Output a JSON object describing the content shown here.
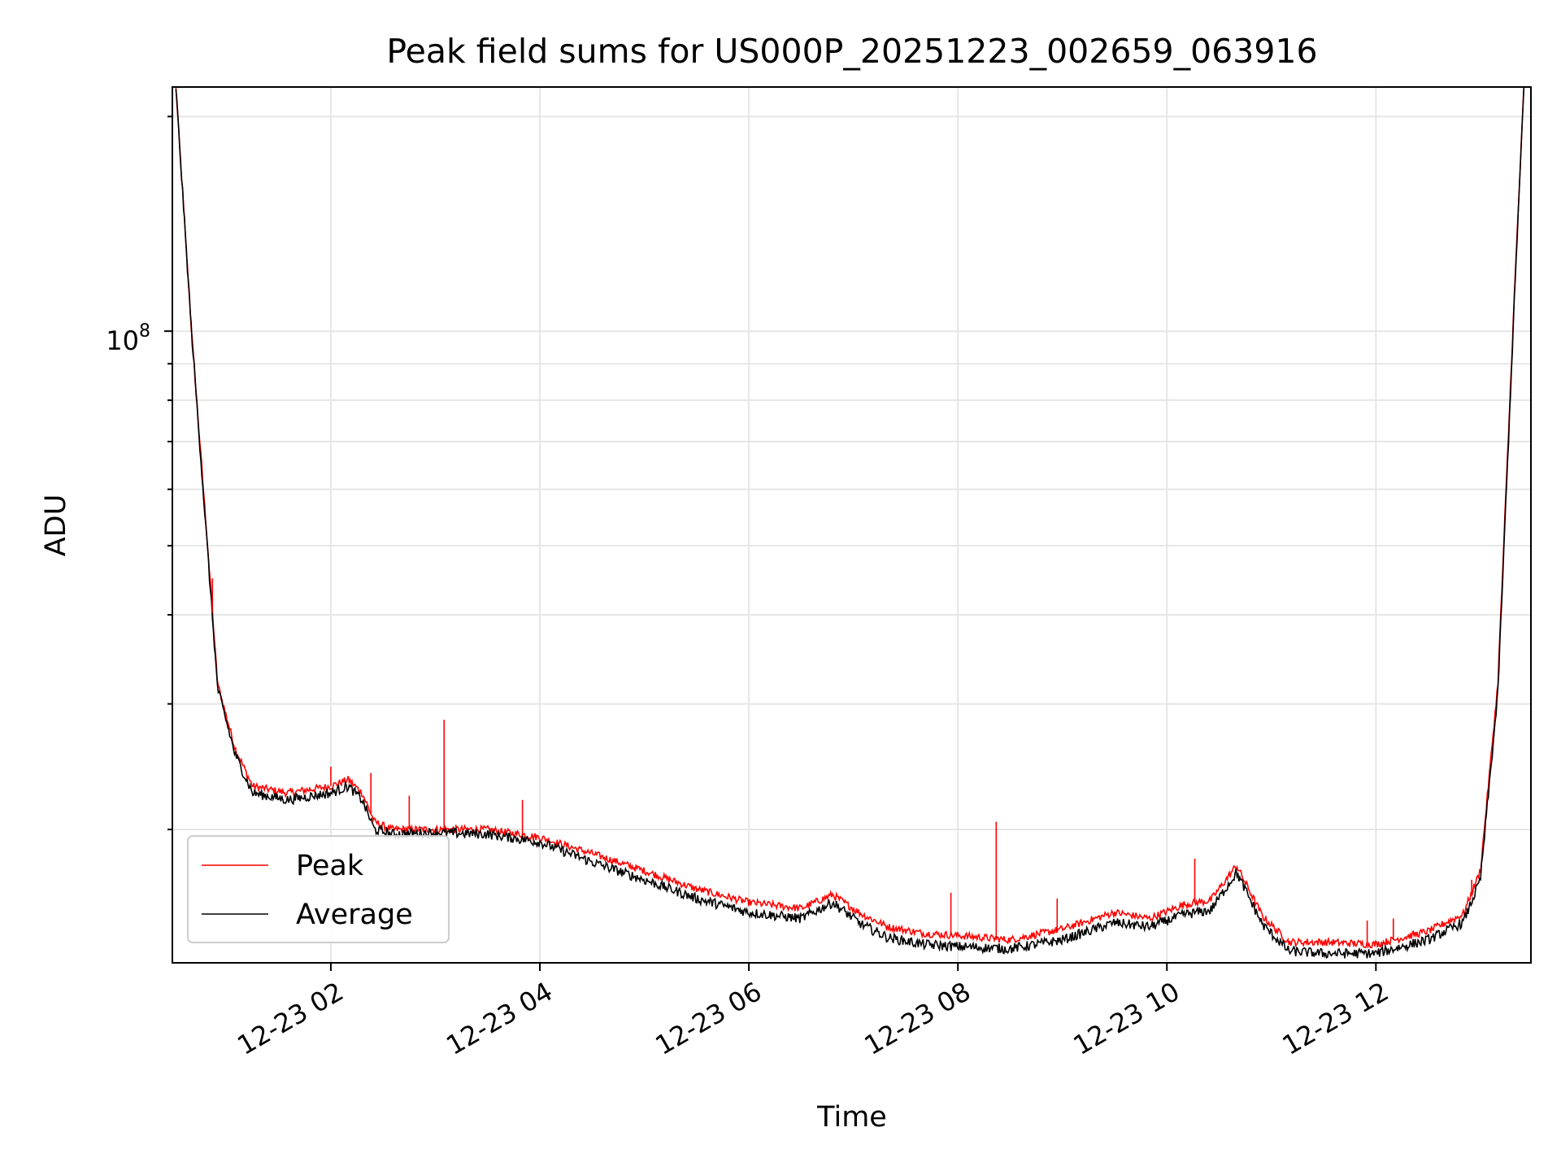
{
  "chart_data": {
    "type": "line",
    "title": "Peak field sums for US000P_20251223_002659_063916",
    "xlabel": "Time",
    "ylabel": "ADU",
    "y_scale": "log",
    "ylim": [
      13000000,
      220000000
    ],
    "xlim": [
      "2025-12-23T00:29",
      "2025-12-23T13:29"
    ],
    "grid": true,
    "legend": {
      "placement": "lower-left",
      "entries": [
        "Peak",
        "Average"
      ]
    },
    "x_tick_labels": [
      "12-23 02",
      "12-23 04",
      "12-23 06",
      "12-23 08",
      "12-23 10",
      "12-23 12"
    ],
    "x_tick_times": [
      "2025-12-23T02:00",
      "2025-12-23T04:00",
      "2025-12-23T06:00",
      "2025-12-23T08:00",
      "2025-12-23T10:00",
      "2025-12-23T12:00"
    ],
    "y_tick_label": "10^8",
    "y_tick_label_base": "10",
    "y_tick_label_exp": "8",
    "y_tick_value": 100000000,
    "series": [
      {
        "name": "Peak",
        "color": "#ff0000",
        "x": [
          "2025-12-23T00:31",
          "2025-12-23T00:40",
          "2025-12-23T00:48",
          "2025-12-23T00:55",
          "2025-12-23T01:05",
          "2025-12-23T01:15",
          "2025-12-23T01:35",
          "2025-12-23T02:00",
          "2025-12-23T02:10",
          "2025-12-23T02:18",
          "2025-12-23T02:25",
          "2025-12-23T02:35",
          "2025-12-23T03:00",
          "2025-12-23T03:30",
          "2025-12-23T04:00",
          "2025-12-23T04:30",
          "2025-12-23T05:00",
          "2025-12-23T05:30",
          "2025-12-23T06:00",
          "2025-12-23T06:30",
          "2025-12-23T06:48",
          "2025-12-23T07:05",
          "2025-12-23T07:20",
          "2025-12-23T07:40",
          "2025-12-23T08:00",
          "2025-12-23T08:30",
          "2025-12-23T09:00",
          "2025-12-23T09:30",
          "2025-12-23T09:50",
          "2025-12-23T10:10",
          "2025-12-23T10:25",
          "2025-12-23T10:40",
          "2025-12-23T10:55",
          "2025-12-23T11:10",
          "2025-12-23T11:30",
          "2025-12-23T12:00",
          "2025-12-23T12:30",
          "2025-12-23T12:50",
          "2025-12-23T13:00",
          "2025-12-23T13:10",
          "2025-12-23T13:20",
          "2025-12-23T13:25"
        ],
        "y": [
          220000000,
          100000000,
          55000000,
          32000000,
          26000000,
          23000000,
          22500000,
          23000000,
          23500000,
          22500000,
          20500000,
          20000000,
          20000000,
          20000000,
          19500000,
          18500000,
          17500000,
          16500000,
          15800000,
          15500000,
          16200000,
          15200000,
          14600000,
          14300000,
          14200000,
          14000000,
          14500000,
          15300000,
          15000000,
          15700000,
          15900000,
          17800000,
          15100000,
          13900000,
          13900000,
          13800000,
          14400000,
          15200000,
          17500000,
          32000000,
          120000000,
          220000000
        ]
      },
      {
        "name": "Average",
        "color": "#000000",
        "x": [
          "2025-12-23T00:31",
          "2025-12-23T00:40",
          "2025-12-23T00:48",
          "2025-12-23T00:55",
          "2025-12-23T01:05",
          "2025-12-23T01:15",
          "2025-12-23T01:35",
          "2025-12-23T02:00",
          "2025-12-23T02:10",
          "2025-12-23T02:18",
          "2025-12-23T02:25",
          "2025-12-23T02:35",
          "2025-12-23T03:00",
          "2025-12-23T03:30",
          "2025-12-23T04:00",
          "2025-12-23T04:30",
          "2025-12-23T05:00",
          "2025-12-23T05:30",
          "2025-12-23T06:00",
          "2025-12-23T06:30",
          "2025-12-23T06:48",
          "2025-12-23T07:05",
          "2025-12-23T07:20",
          "2025-12-23T07:40",
          "2025-12-23T08:00",
          "2025-12-23T08:30",
          "2025-12-23T09:00",
          "2025-12-23T09:30",
          "2025-12-23T09:50",
          "2025-12-23T10:10",
          "2025-12-23T10:25",
          "2025-12-23T10:40",
          "2025-12-23T10:55",
          "2025-12-23T11:10",
          "2025-12-23T11:30",
          "2025-12-23T12:00",
          "2025-12-23T12:30",
          "2025-12-23T12:50",
          "2025-12-23T13:00",
          "2025-12-23T13:10",
          "2025-12-23T13:20",
          "2025-12-23T13:25"
        ],
        "y": [
          220000000,
          100000000,
          54000000,
          31500000,
          25500000,
          22500000,
          22000000,
          22500000,
          23000000,
          22000000,
          20000000,
          19700000,
          19800000,
          19700000,
          19200000,
          18000000,
          17000000,
          16000000,
          15300000,
          15000000,
          15800000,
          14700000,
          14100000,
          13800000,
          13700000,
          13600000,
          14000000,
          14800000,
          14600000,
          15200000,
          15400000,
          17400000,
          14700000,
          13500000,
          13400000,
          13400000,
          14000000,
          14800000,
          17000000,
          31000000,
          118000000,
          220000000
        ]
      }
    ],
    "spikes": [
      {
        "series": "Peak",
        "x": "2025-12-23T00:52",
        "y": 45000000
      },
      {
        "series": "Peak",
        "x": "2025-12-23T03:05",
        "y": 28500000
      },
      {
        "series": "Peak",
        "x": "2025-12-23T02:00",
        "y": 24500000
      },
      {
        "series": "Peak",
        "x": "2025-12-23T02:23",
        "y": 24000000
      },
      {
        "series": "Peak",
        "x": "2025-12-23T02:45",
        "y": 22300000
      },
      {
        "series": "Peak",
        "x": "2025-12-23T03:50",
        "y": 22000000
      },
      {
        "series": "Peak",
        "x": "2025-12-23T07:56",
        "y": 16300000
      },
      {
        "series": "Peak",
        "x": "2025-12-23T08:22",
        "y": 20500000
      },
      {
        "series": "Peak",
        "x": "2025-12-23T08:57",
        "y": 16000000
      },
      {
        "series": "Peak",
        "x": "2025-12-23T10:16",
        "y": 18200000
      },
      {
        "series": "Peak",
        "x": "2025-12-23T11:55",
        "y": 14900000
      },
      {
        "series": "Peak",
        "x": "2025-12-23T12:10",
        "y": 15000000
      },
      {
        "series": "Peak",
        "x": "2025-12-23T12:55",
        "y": 17000000
      }
    ]
  }
}
